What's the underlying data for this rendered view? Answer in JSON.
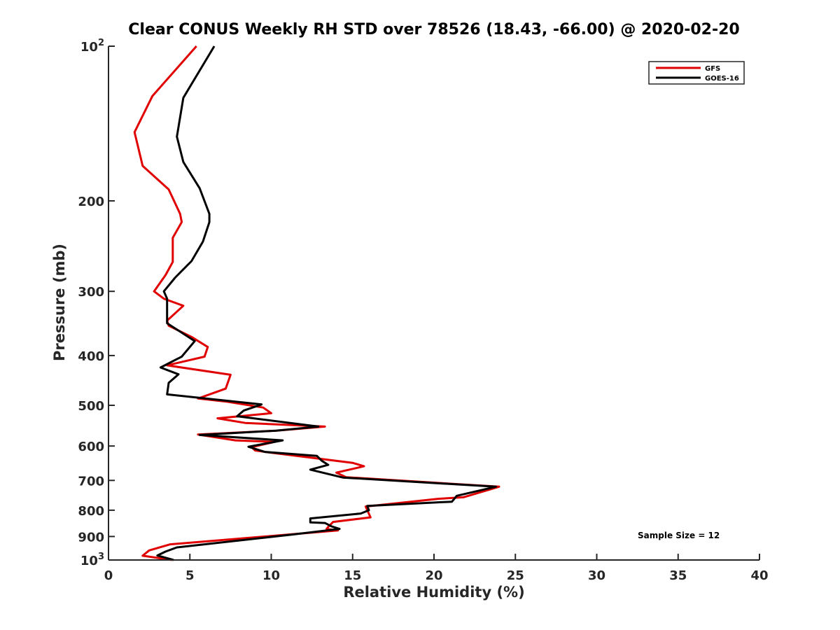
{
  "chart_data": {
    "type": "line",
    "title": "Clear CONUS Weekly RH STD over 78526 (18.43, -66.00) @ 2020-02-20",
    "xlabel": "Relative Humidity (%)",
    "ylabel": "Pressure (mb)",
    "xlim": [
      0,
      40
    ],
    "ylim": [
      100,
      1000
    ],
    "yscale": "log",
    "y_reversed": true,
    "grid": false,
    "legend_position": "top-right",
    "annotation": "Sample Size = 12",
    "x_ticks": [
      "0",
      "5",
      "10",
      "15",
      "20",
      "25",
      "30",
      "35",
      "40"
    ],
    "y_ticks": [
      {
        "value": 100,
        "base": "10",
        "exp": "2"
      },
      {
        "value": 200,
        "label": "200"
      },
      {
        "value": 300,
        "label": "300"
      },
      {
        "value": 400,
        "label": "400"
      },
      {
        "value": 500,
        "label": "500"
      },
      {
        "value": 600,
        "label": "600"
      },
      {
        "value": 700,
        "label": "700"
      },
      {
        "value": 800,
        "label": "800"
      },
      {
        "value": 900,
        "label": "900"
      },
      {
        "value": 1000,
        "base": "10",
        "exp": "3"
      }
    ],
    "series": [
      {
        "name": "GFS",
        "color": "#e00000",
        "points": [
          [
            5.4,
            100
          ],
          [
            2.7,
            125
          ],
          [
            1.6,
            147
          ],
          [
            2.1,
            171
          ],
          [
            3.7,
            190
          ],
          [
            4.4,
            212
          ],
          [
            4.5,
            220
          ],
          [
            3.95,
            236
          ],
          [
            3.95,
            263
          ],
          [
            3.5,
            279
          ],
          [
            2.8,
            300
          ],
          [
            3.4,
            310
          ],
          [
            4.6,
            320
          ],
          [
            3.6,
            342
          ],
          [
            3.7,
            350
          ],
          [
            5.1,
            368
          ],
          [
            6.1,
            385
          ],
          [
            5.9,
            402
          ],
          [
            3.6,
            418
          ],
          [
            7.5,
            436
          ],
          [
            7.2,
            464
          ],
          [
            5.5,
            485
          ],
          [
            7.3,
            492
          ],
          [
            9.5,
            505
          ],
          [
            10.0,
            518
          ],
          [
            6.7,
            530
          ],
          [
            8.4,
            541
          ],
          [
            13.3,
            550
          ],
          [
            10.3,
            560
          ],
          [
            5.5,
            570
          ],
          [
            7.8,
            585
          ],
          [
            10.2,
            589
          ],
          [
            8.8,
            603
          ],
          [
            9.0,
            612
          ],
          [
            9.8,
            617
          ],
          [
            15.0,
            647
          ],
          [
            15.7,
            657
          ],
          [
            14.0,
            676
          ],
          [
            14.6,
            690
          ],
          [
            24.0,
            720
          ],
          [
            21.8,
            755
          ],
          [
            20.3,
            760
          ],
          [
            15.8,
            787
          ],
          [
            16.1,
            826
          ],
          [
            13.8,
            843
          ],
          [
            13.5,
            862
          ],
          [
            13.4,
            870
          ],
          [
            14.1,
            876
          ],
          [
            3.8,
            932
          ],
          [
            2.5,
            958
          ],
          [
            2.1,
            981
          ],
          [
            3.9,
            1000
          ]
        ]
      },
      {
        "name": "GOES-16",
        "color": "#000000",
        "points": [
          [
            6.5,
            100
          ],
          [
            4.6,
            126
          ],
          [
            4.2,
            150
          ],
          [
            4.6,
            168
          ],
          [
            5.6,
            189
          ],
          [
            6.2,
            212
          ],
          [
            6.2,
            220
          ],
          [
            5.8,
            240
          ],
          [
            5.1,
            262
          ],
          [
            4.1,
            282
          ],
          [
            3.4,
            300
          ],
          [
            3.6,
            310
          ],
          [
            3.6,
            328
          ],
          [
            3.6,
            346
          ],
          [
            5.3,
            375
          ],
          [
            4.5,
            402
          ],
          [
            3.2,
            422
          ],
          [
            4.3,
            435
          ],
          [
            3.7,
            452
          ],
          [
            3.6,
            476
          ],
          [
            9.4,
            498
          ],
          [
            8.3,
            512
          ],
          [
            7.9,
            525
          ],
          [
            12.9,
            550
          ],
          [
            10.3,
            560
          ],
          [
            5.6,
            571
          ],
          [
            10.7,
            585
          ],
          [
            8.6,
            602
          ],
          [
            9.6,
            616
          ],
          [
            12.8,
            627
          ],
          [
            13.1,
            641
          ],
          [
            13.5,
            653
          ],
          [
            12.4,
            667
          ],
          [
            14.4,
            691
          ],
          [
            23.8,
            720
          ],
          [
            21.4,
            750
          ],
          [
            21.1,
            770
          ],
          [
            15.9,
            785
          ],
          [
            16.0,
            800
          ],
          [
            15.5,
            812
          ],
          [
            12.4,
            830
          ],
          [
            12.4,
            845
          ],
          [
            13.3,
            847
          ],
          [
            13.7,
            860
          ],
          [
            14.2,
            870
          ],
          [
            11.3,
            892
          ],
          [
            4.2,
            945
          ],
          [
            3.5,
            963
          ],
          [
            3.0,
            980
          ],
          [
            4.0,
            1000
          ]
        ]
      }
    ]
  }
}
